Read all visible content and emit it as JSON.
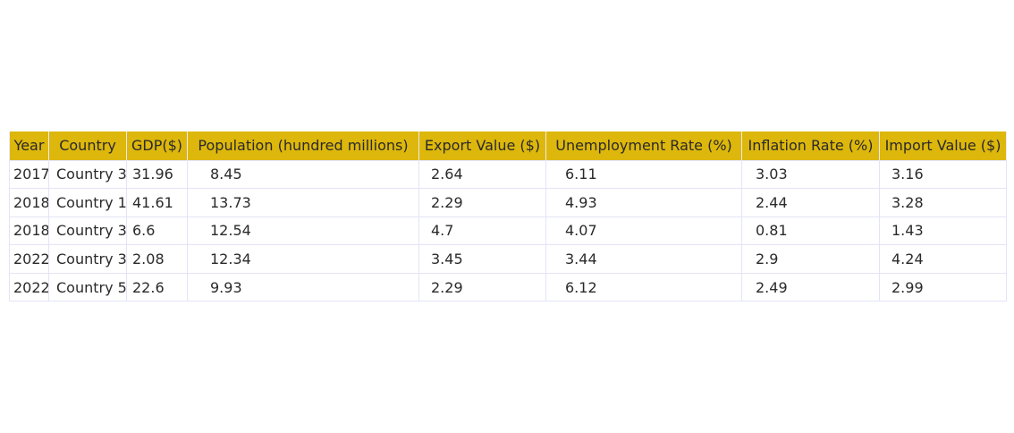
{
  "chart_data": {
    "type": "table",
    "header_color": "#ddb70b",
    "border_color": "#e4e4f7",
    "columns": [
      "Year",
      "Country",
      "GDP($)",
      "Population (hundred millions)",
      "Export Value ($)",
      "Unemployment Rate (%)",
      "Inflation Rate (%)",
      "Import Value ($)"
    ],
    "rows": [
      [
        "2017",
        "Country 3",
        "31.96",
        "8.45",
        "2.64",
        "6.11",
        "3.03",
        "3.16"
      ],
      [
        "2018",
        "Country 1",
        "41.61",
        "13.73",
        "2.29",
        "4.93",
        "2.44",
        "3.28"
      ],
      [
        "2018",
        "Country 3",
        "6.6",
        "12.54",
        "4.7",
        "4.07",
        "0.81",
        "1.43"
      ],
      [
        "2022",
        "Country 3",
        "2.08",
        "12.34",
        "3.45",
        "3.44",
        "2.9",
        "4.24"
      ],
      [
        "2022",
        "Country 5",
        "22.6",
        "9.93",
        "2.29",
        "6.12",
        "2.49",
        "2.99"
      ]
    ]
  }
}
